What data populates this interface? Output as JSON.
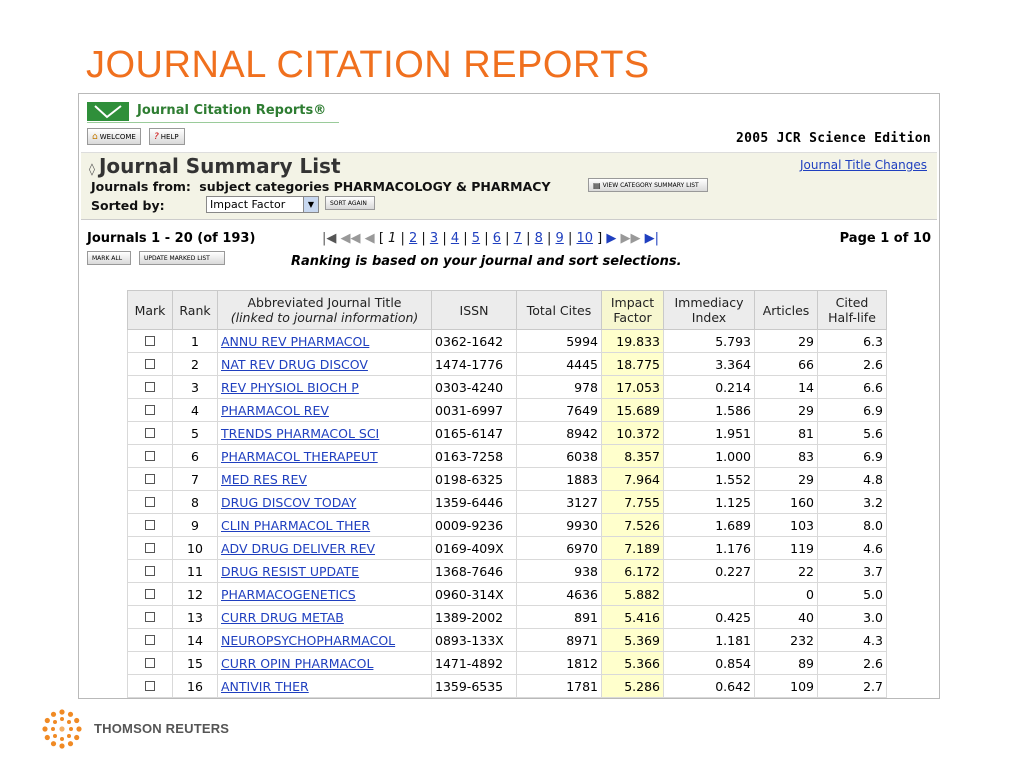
{
  "slide_title": "JOURNAL CITATION REPORTS",
  "brand": "Journal Citation Reports®",
  "buttons": {
    "welcome": "WELCOME",
    "help": "HELP",
    "view_category": "VIEW CATEGORY SUMMARY LIST",
    "sort_again": "SORT AGAIN",
    "mark_all": "MARK ALL",
    "update_marked": "UPDATE MARKED LIST"
  },
  "edition": "2005 JCR Science Edition",
  "summary_title": "Journal Summary List",
  "title_changes_link": "Journal Title Changes",
  "journals_from_label": "Journals from:",
  "journals_from_value": "subject categories PHARMACOLOGY & PHARMACY",
  "sorted_by_label": "Sorted by:",
  "sorted_by_value": "Impact Factor",
  "journals_count": "Journals 1 - 20 (of 193)",
  "pager": {
    "open": "[",
    "current": "1",
    "pages": [
      "2",
      "3",
      "4",
      "5",
      "6",
      "7",
      "8",
      "9",
      "10"
    ],
    "close": "]"
  },
  "page_of": "Page 1 of 10",
  "ranking_note": "Ranking is based on your journal and sort selections.",
  "table": {
    "headers": {
      "mark": "Mark",
      "rank": "Rank",
      "title_1": "Abbreviated Journal Title",
      "title_2": "(linked to journal information)",
      "issn": "ISSN",
      "cites": "Total Cites",
      "impact_1": "Impact",
      "impact_2": "Factor",
      "immediacy_1": "Immediacy",
      "immediacy_2": "Index",
      "articles": "Articles",
      "halflife_1": "Cited",
      "halflife_2": "Half-life"
    },
    "rows": [
      {
        "rank": "1",
        "title": "ANNU REV PHARMACOL",
        "issn": "0362-1642",
        "cites": "5994",
        "impact": "19.833",
        "immediacy": "5.793",
        "articles": "29",
        "halflife": "6.3"
      },
      {
        "rank": "2",
        "title": "NAT REV DRUG DISCOV",
        "issn": "1474-1776",
        "cites": "4445",
        "impact": "18.775",
        "immediacy": "3.364",
        "articles": "66",
        "halflife": "2.6"
      },
      {
        "rank": "3",
        "title": "REV PHYSIOL BIOCH P",
        "issn": "0303-4240",
        "cites": "978",
        "impact": "17.053",
        "immediacy": "0.214",
        "articles": "14",
        "halflife": "6.6"
      },
      {
        "rank": "4",
        "title": "PHARMACOL REV",
        "issn": "0031-6997",
        "cites": "7649",
        "impact": "15.689",
        "immediacy": "1.586",
        "articles": "29",
        "halflife": "6.9"
      },
      {
        "rank": "5",
        "title": "TRENDS PHARMACOL SCI",
        "issn": "0165-6147",
        "cites": "8942",
        "impact": "10.372",
        "immediacy": "1.951",
        "articles": "81",
        "halflife": "5.6"
      },
      {
        "rank": "6",
        "title": "PHARMACOL THERAPEUT",
        "issn": "0163-7258",
        "cites": "6038",
        "impact": "8.357",
        "immediacy": "1.000",
        "articles": "83",
        "halflife": "6.9"
      },
      {
        "rank": "7",
        "title": "MED RES REV",
        "issn": "0198-6325",
        "cites": "1883",
        "impact": "7.964",
        "immediacy": "1.552",
        "articles": "29",
        "halflife": "4.8"
      },
      {
        "rank": "8",
        "title": "DRUG DISCOV TODAY",
        "issn": "1359-6446",
        "cites": "3127",
        "impact": "7.755",
        "immediacy": "1.125",
        "articles": "160",
        "halflife": "3.2"
      },
      {
        "rank": "9",
        "title": "CLIN PHARMACOL THER",
        "issn": "0009-9236",
        "cites": "9930",
        "impact": "7.526",
        "immediacy": "1.689",
        "articles": "103",
        "halflife": "8.0"
      },
      {
        "rank": "10",
        "title": "ADV DRUG DELIVER REV",
        "issn": "0169-409X",
        "cites": "6970",
        "impact": "7.189",
        "immediacy": "1.176",
        "articles": "119",
        "halflife": "4.6"
      },
      {
        "rank": "11",
        "title": "DRUG RESIST UPDATE",
        "issn": "1368-7646",
        "cites": "938",
        "impact": "6.172",
        "immediacy": "0.227",
        "articles": "22",
        "halflife": "3.7"
      },
      {
        "rank": "12",
        "title": "PHARMACOGENETICS",
        "issn": "0960-314X",
        "cites": "4636",
        "impact": "5.882",
        "immediacy": "",
        "articles": "0",
        "halflife": "5.0"
      },
      {
        "rank": "13",
        "title": "CURR DRUG METAB",
        "issn": "1389-2002",
        "cites": "891",
        "impact": "5.416",
        "immediacy": "0.425",
        "articles": "40",
        "halflife": "3.0"
      },
      {
        "rank": "14",
        "title": "NEUROPSYCHOPHARMACOL",
        "issn": "0893-133X",
        "cites": "8971",
        "impact": "5.369",
        "immediacy": "1.181",
        "articles": "232",
        "halflife": "4.3"
      },
      {
        "rank": "15",
        "title": "CURR OPIN PHARMACOL",
        "issn": "1471-4892",
        "cites": "1812",
        "impact": "5.366",
        "immediacy": "0.854",
        "articles": "89",
        "halflife": "2.6"
      },
      {
        "rank": "16",
        "title": "ANTIVIR THER",
        "issn": "1359-6535",
        "cites": "1781",
        "impact": "5.286",
        "immediacy": "0.642",
        "articles": "109",
        "halflife": "2.7"
      }
    ]
  },
  "footer_brand": "THOMSON REUTERS"
}
